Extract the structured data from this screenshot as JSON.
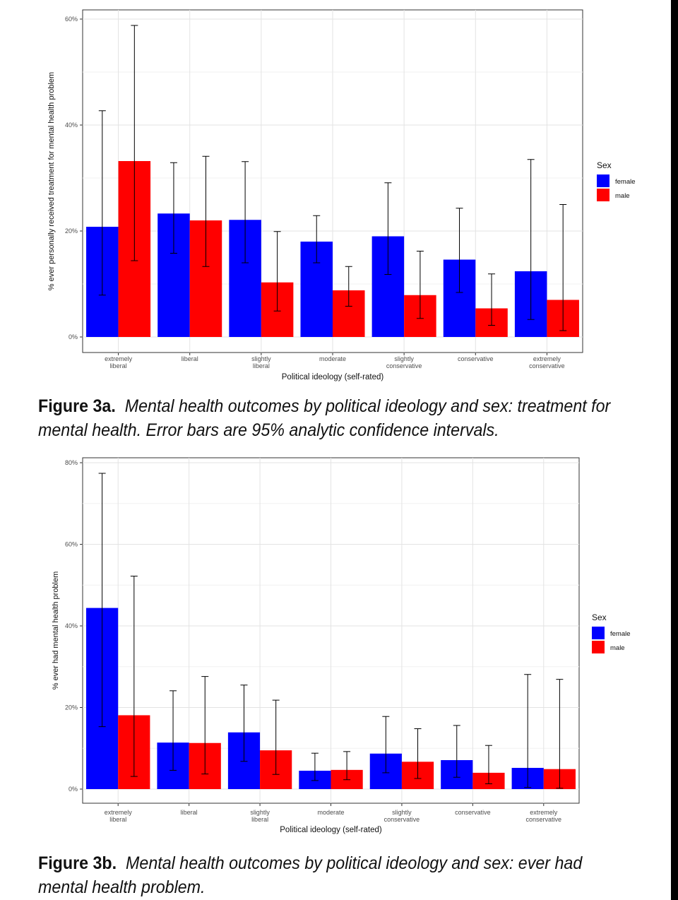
{
  "chart_data": [
    {
      "type": "bar",
      "title": "",
      "xlabel": "Political ideology (self-rated)",
      "ylabel": "% ever personally received treatment for mental health problem",
      "ylim": [
        0,
        60
      ],
      "yticks": [
        "0%",
        "20%",
        "40%",
        "60%"
      ],
      "ytick_values": [
        0,
        20,
        40,
        60
      ],
      "categories": [
        [
          "extremely",
          "liberal"
        ],
        [
          "liberal"
        ],
        [
          "slightly",
          "liberal"
        ],
        [
          "moderate"
        ],
        [
          "slightly",
          "conservative"
        ],
        [
          "conservative"
        ],
        [
          "extremely",
          "conservative"
        ]
      ],
      "legend_title": "Sex",
      "legend_position": "right",
      "series": [
        {
          "name": "female",
          "color": "#0000ff",
          "values": [
            20.8,
            23.3,
            22.1,
            18.0,
            19.0,
            14.6,
            12.4
          ],
          "ci_low": [
            7.9,
            15.8,
            14.0,
            14.0,
            11.8,
            8.4,
            3.3
          ],
          "ci_high": [
            42.7,
            32.9,
            33.1,
            22.9,
            29.1,
            24.3,
            33.5
          ]
        },
        {
          "name": "male",
          "color": "#ff0000",
          "values": [
            33.2,
            22.0,
            10.3,
            8.8,
            7.9,
            5.4,
            7.0
          ],
          "ci_low": [
            14.4,
            13.3,
            4.9,
            5.8,
            3.5,
            2.2,
            1.2
          ],
          "ci_high": [
            58.8,
            34.1,
            19.9,
            13.3,
            16.2,
            11.9,
            25.0
          ]
        }
      ]
    },
    {
      "type": "bar",
      "title": "",
      "xlabel": "Political ideology (self-rated)",
      "ylabel": "% ever had mental health problem",
      "ylim": [
        0,
        80
      ],
      "yticks": [
        "0%",
        "20%",
        "40%",
        "60%",
        "80%"
      ],
      "ytick_values": [
        0,
        20,
        40,
        60,
        80
      ],
      "categories": [
        [
          "extremely",
          "liberal"
        ],
        [
          "liberal"
        ],
        [
          "slightly",
          "liberal"
        ],
        [
          "moderate"
        ],
        [
          "slightly",
          "conservative"
        ],
        [
          "conservative"
        ],
        [
          "extremely",
          "conservative"
        ]
      ],
      "legend_title": "Sex",
      "legend_position": "right",
      "series": [
        {
          "name": "female",
          "color": "#0000ff",
          "values": [
            44.4,
            11.4,
            13.9,
            4.5,
            8.7,
            7.1,
            5.2
          ],
          "ci_low": [
            15.3,
            4.6,
            6.8,
            2.1,
            4.0,
            2.9,
            0.4
          ],
          "ci_high": [
            77.4,
            24.1,
            25.5,
            8.8,
            17.8,
            15.6,
            28.1
          ]
        },
        {
          "name": "male",
          "color": "#ff0000",
          "values": [
            18.1,
            11.3,
            9.5,
            4.7,
            6.7,
            4.0,
            4.9
          ],
          "ci_low": [
            3.1,
            3.7,
            3.6,
            2.3,
            2.6,
            1.3,
            0.2
          ],
          "ci_high": [
            52.2,
            27.6,
            21.8,
            9.2,
            14.8,
            10.7,
            26.9
          ]
        }
      ]
    }
  ],
  "captions": {
    "a_label": "Figure 3a.",
    "a_text": "Mental health outcomes by political ideology and sex: treatment for mental health. Error bars are 95% analytic confidence intervals.",
    "b_label": "Figure 3b.",
    "b_text": "Mental health outcomes by political ideology and sex: ever had mental health problem."
  }
}
